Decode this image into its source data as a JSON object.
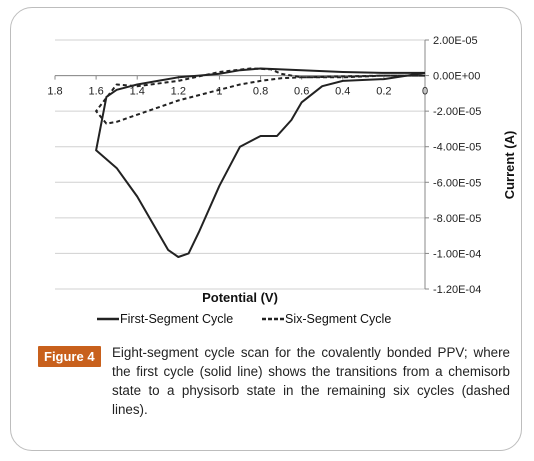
{
  "chart_data": {
    "type": "line",
    "xlabel": "Potential (V)",
    "ylabel": "Current (A)",
    "xlim": [
      1.8,
      0
    ],
    "x_reversed": true,
    "ylim": [
      -0.00012,
      2e-05
    ],
    "x_ticks": [
      1.8,
      1.6,
      1.4,
      1.2,
      1,
      0.8,
      0.6,
      0.4,
      0.2,
      0
    ],
    "x_tick_labels": [
      "1.8",
      "1.6",
      "1.4",
      "1.2",
      "1",
      "0.8",
      "0.6",
      "0.4",
      "0.2",
      "0"
    ],
    "y_ticks": [
      2e-05,
      0,
      -2e-05,
      -4e-05,
      -6e-05,
      -8e-05,
      -0.0001,
      -0.00012
    ],
    "y_tick_labels": [
      "2.00E-05",
      "0.00E+00",
      "-2.00E-05",
      "-4.00E-05",
      "-6.00E-05",
      "-8.00E-05",
      "-1.00E-04",
      "-1.20E-04"
    ],
    "grid": "horizontal",
    "legend_position": "bottom",
    "series": [
      {
        "name": "First-Segment Cycle",
        "style": "solid",
        "color": "#222222",
        "x": [
          0,
          0.2,
          0.4,
          0.5,
          0.6,
          0.65,
          0.72,
          0.8,
          0.9,
          1.0,
          1.1,
          1.15,
          1.2,
          1.25,
          1.3,
          1.4,
          1.5,
          1.6,
          1.55,
          1.5,
          1.4,
          1.3,
          1.2,
          1.1,
          1.0,
          0.9,
          0.8,
          0.6,
          0.4,
          0.2,
          0
        ],
        "y": [
          1.5e-06,
          -2e-06,
          -3e-06,
          -6e-06,
          -1.5e-05,
          -2.5e-05,
          -3.4e-05,
          -3.4e-05,
          -4e-05,
          -6.2e-05,
          -8.8e-05,
          -0.0001,
          -0.000102,
          -9.8e-05,
          -8.8e-05,
          -6.8e-05,
          -5.2e-05,
          -4.2e-05,
          -1.2e-05,
          -8e-06,
          -5e-06,
          -3e-06,
          -1e-06,
          0,
          1e-06,
          3e-06,
          4e-06,
          3e-06,
          2e-06,
          1.5e-06,
          1.5e-06
        ]
      },
      {
        "name": "Six-Segment Cycle",
        "style": "dashed",
        "color": "#222222",
        "x": [
          0,
          0.2,
          0.4,
          0.6,
          0.7,
          0.75,
          0.85,
          1.0,
          1.2,
          1.4,
          1.5,
          1.6,
          1.55,
          1.5,
          1.4,
          1.2,
          1.0,
          0.9,
          0.8,
          0.7,
          0.6,
          0.4,
          0.2,
          0
        ],
        "y": [
          0,
          0,
          -1e-06,
          -1e-06,
          1e-06,
          3.5e-06,
          4e-06,
          2e-06,
          -3e-06,
          -6e-06,
          -5e-06,
          -2e-05,
          -2.7e-05,
          -2.6e-05,
          -2.2e-05,
          -1.4e-05,
          -8e-06,
          -5e-06,
          -3e-06,
          -1.5e-06,
          -1e-06,
          -5e-07,
          0,
          0
        ]
      }
    ]
  },
  "caption": {
    "label": "Figure 4",
    "text": "Eight-segment cycle scan for the covalently bonded PPV; where the first cycle (solid line) shows the transitions from a chemisorb state to a physisorb state in the remaining six cycles (dashed lines)."
  }
}
